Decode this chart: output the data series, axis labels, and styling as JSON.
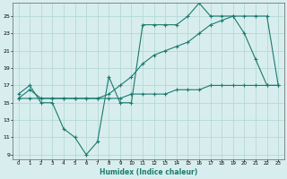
{
  "line1_x": [
    0,
    1,
    2,
    3,
    4,
    5,
    6,
    7,
    8,
    9,
    10,
    11,
    12,
    13,
    14,
    15,
    16,
    17,
    18,
    19,
    20,
    21,
    22,
    23
  ],
  "line1_y": [
    16,
    17,
    15,
    15,
    12,
    11,
    9,
    10.5,
    18,
    15,
    15,
    24,
    24,
    24,
    24,
    25,
    26.5,
    25,
    25,
    25,
    23,
    20,
    17,
    17
  ],
  "line2_x": [
    0,
    1,
    2,
    3,
    4,
    5,
    6,
    7,
    8,
    9,
    10,
    11,
    12,
    13,
    14,
    15,
    16,
    17,
    18,
    19,
    20,
    21,
    22,
    23
  ],
  "line2_y": [
    15.5,
    16.5,
    15.5,
    15.5,
    15.5,
    15.5,
    15.5,
    15.5,
    16,
    17,
    18,
    19.5,
    20.5,
    21,
    21.5,
    22,
    23,
    24,
    24.5,
    25,
    25,
    25,
    25,
    17
  ],
  "line3_x": [
    0,
    1,
    2,
    3,
    4,
    5,
    6,
    7,
    8,
    9,
    10,
    11,
    12,
    13,
    14,
    15,
    16,
    17,
    18,
    19,
    20,
    21,
    22,
    23
  ],
  "line3_y": [
    15.5,
    15.5,
    15.5,
    15.5,
    15.5,
    15.5,
    15.5,
    15.5,
    15.5,
    15.5,
    16,
    16,
    16,
    16,
    16.5,
    16.5,
    16.5,
    17,
    17,
    17,
    17,
    17,
    17,
    17
  ],
  "line_color": "#1a7a6e",
  "bg_color": "#d8eeee",
  "grid_color": "#aed4d4",
  "xlabel": "Humidex (Indice chaleur)",
  "xlim": [
    -0.5,
    23.5
  ],
  "ylim": [
    8.5,
    26.5
  ],
  "xticks": [
    0,
    1,
    2,
    3,
    4,
    5,
    6,
    7,
    8,
    9,
    10,
    11,
    12,
    13,
    14,
    15,
    16,
    17,
    18,
    19,
    20,
    21,
    22,
    23
  ],
  "yticks": [
    9,
    11,
    13,
    15,
    17,
    19,
    21,
    23,
    25
  ],
  "marker": "+"
}
